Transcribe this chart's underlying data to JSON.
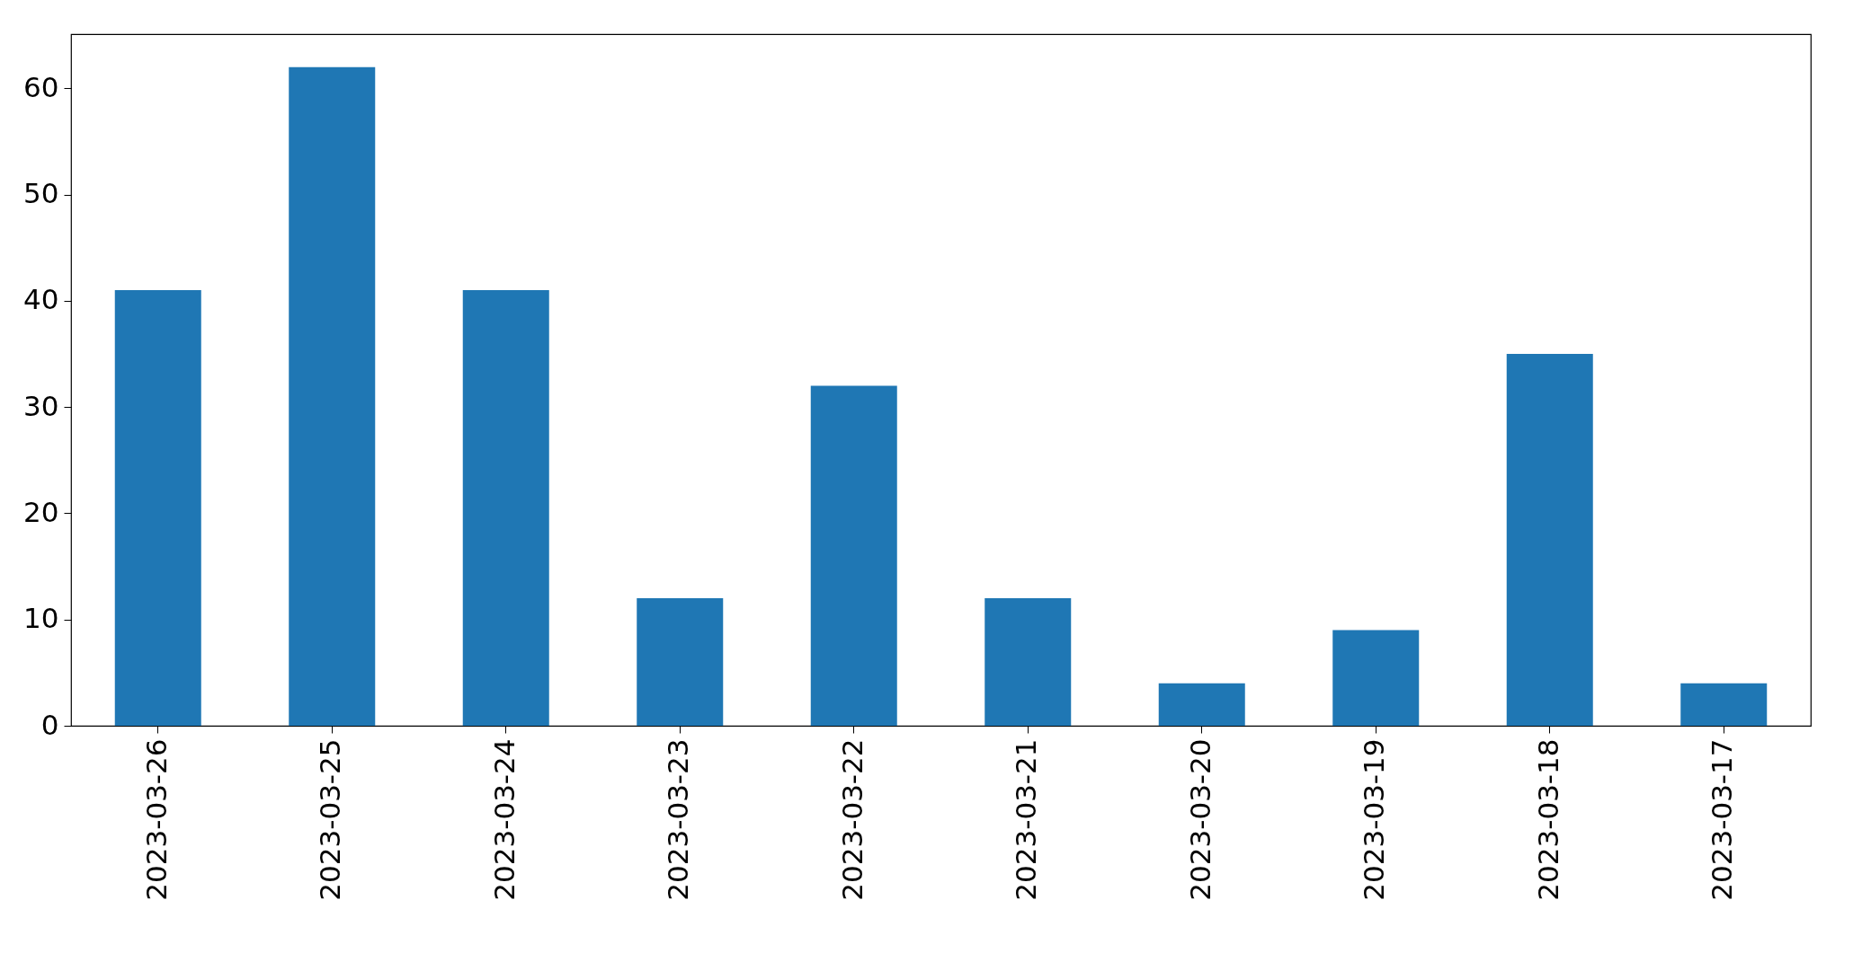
{
  "chart_data": {
    "type": "bar",
    "categories": [
      "2023-03-26",
      "2023-03-25",
      "2023-03-24",
      "2023-03-23",
      "2023-03-22",
      "2023-03-21",
      "2023-03-20",
      "2023-03-19",
      "2023-03-18",
      "2023-03-17"
    ],
    "values": [
      41,
      62,
      41,
      12,
      32,
      12,
      4,
      9,
      35,
      4
    ],
    "color": "#1f77b4",
    "ylim": [
      0,
      65.1
    ],
    "yticks": [
      0,
      10,
      20,
      30,
      40,
      50,
      60
    ],
    "grid": false
  }
}
